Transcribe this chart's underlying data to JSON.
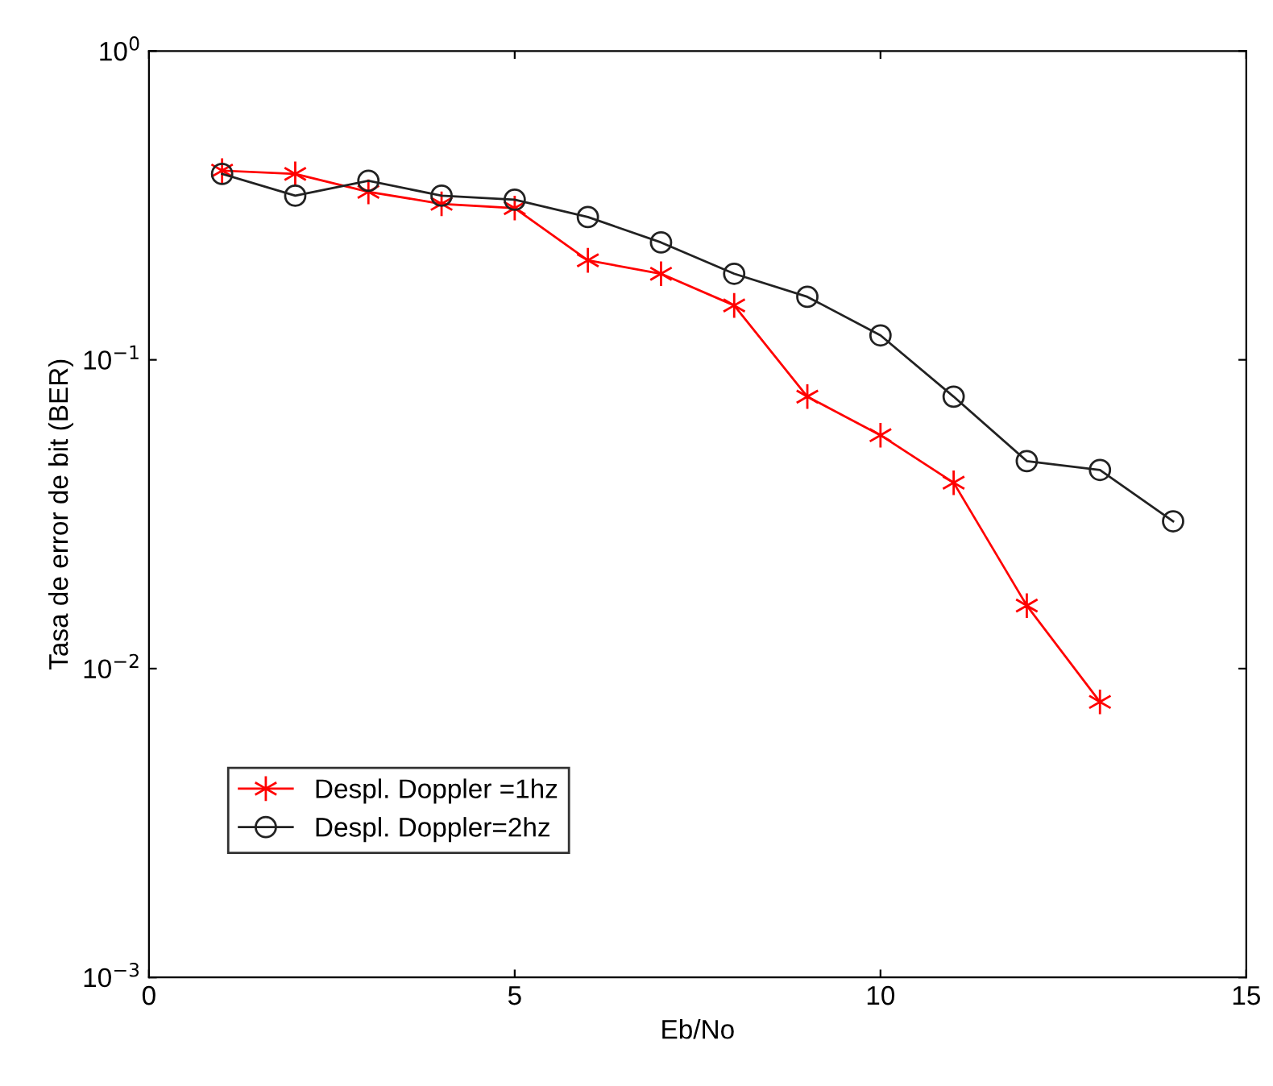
{
  "chart_data": {
    "type": "line",
    "xlabel": "Eb/No",
    "ylabel": "Tasa de error de bit (BER)",
    "log": "y",
    "xlim": [
      0,
      15
    ],
    "xticks": [
      0,
      5,
      10,
      15
    ],
    "ylim": [
      0.001,
      1
    ],
    "yticks": [
      {
        "value": 0.001,
        "label": "10$^{−3}$"
      },
      {
        "value": 0.01,
        "label": "10$^{−2}$"
      },
      {
        "value": 0.1,
        "label": "10$^{−1}$"
      },
      {
        "value": 1,
        "label": "10$^{0}$"
      }
    ],
    "grid": false,
    "legend": "bottom left",
    "line_style": "solid",
    "series": [
      {
        "name": "Despl. Doppler =1hz",
        "color": "#ff0000",
        "marker": "cross",
        "x": [
          1,
          2,
          3,
          4,
          5,
          6,
          7,
          8,
          9,
          10,
          11,
          12,
          13
        ],
        "values": [
          0.41,
          0.4,
          0.35,
          0.32,
          0.31,
          0.21,
          0.19,
          0.15,
          0.076,
          0.057,
          0.04,
          0.016,
          0.0078
        ]
      },
      {
        "name": "Despl. Doppler=2hz",
        "color": "#222222",
        "marker": "circle",
        "x": [
          1,
          2,
          3,
          4,
          5,
          6,
          7,
          8,
          9,
          10,
          11,
          12,
          13,
          14
        ],
        "values": [
          0.4,
          0.34,
          0.38,
          0.34,
          0.33,
          0.29,
          0.24,
          0.19,
          0.16,
          0.12,
          0.076,
          0.047,
          0.044,
          0.03
        ]
      }
    ]
  }
}
